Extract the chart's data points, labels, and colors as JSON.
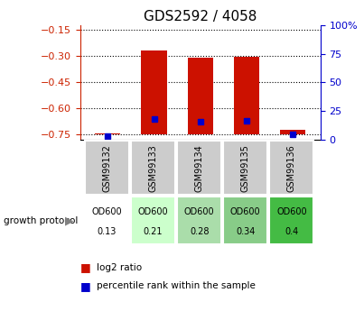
{
  "title": "GDS2592 / 4058",
  "samples": [
    "GSM99132",
    "GSM99133",
    "GSM99134",
    "GSM99135",
    "GSM99136"
  ],
  "log2_ratio": [
    -0.74,
    -0.265,
    -0.31,
    -0.305,
    -0.72
  ],
  "percentile": [
    3,
    18,
    16,
    17,
    5
  ],
  "growth_protocol_labels": [
    "OD600\n0.13",
    "OD600\n0.21",
    "OD600\n0.28",
    "OD600\n0.34",
    "OD600\n0.4"
  ],
  "growth_protocol_colors": [
    "#ffffff",
    "#ccffcc",
    "#aaddaa",
    "#88cc88",
    "#44bb44"
  ],
  "ylim_left": [
    -0.78,
    -0.12
  ],
  "yticks_left": [
    -0.75,
    -0.6,
    -0.45,
    -0.3,
    -0.15
  ],
  "ylim_right": [
    0,
    100
  ],
  "yticks_right": [
    0,
    25,
    50,
    75,
    100
  ],
  "bar_color_red": "#cc1100",
  "bar_color_blue": "#0000cc",
  "bar_width": 0.55,
  "background_label": "#cccccc",
  "left_axis_color": "#cc2200",
  "right_axis_color": "#0000cc",
  "fig_width": 4.03,
  "fig_height": 3.45
}
